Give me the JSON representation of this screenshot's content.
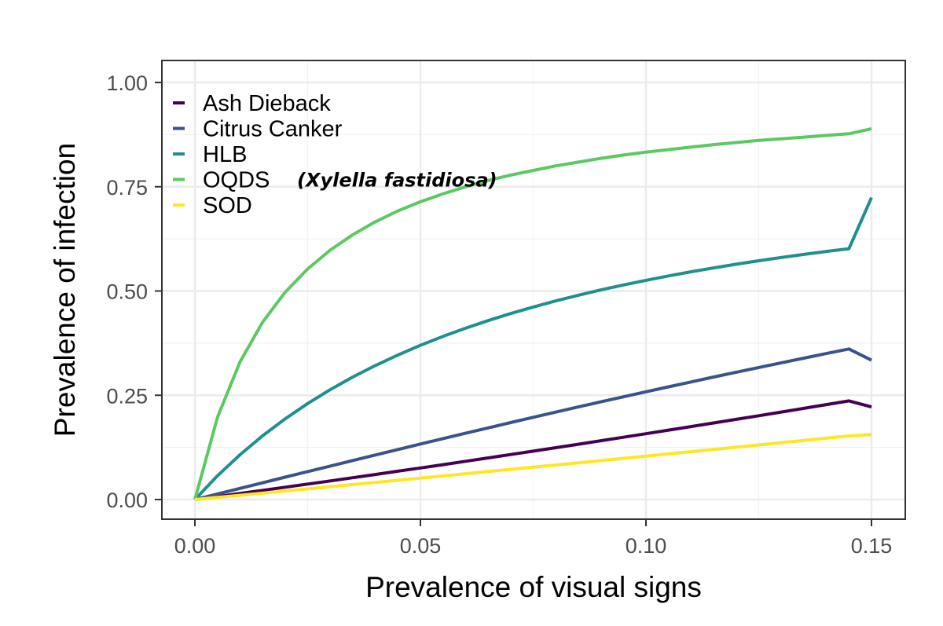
{
  "chart_data": {
    "type": "line",
    "xlabel": "Prevalence of visual signs",
    "ylabel": "Prevalence of infection",
    "xlim": [
      0,
      0.15
    ],
    "ylim": [
      0,
      1
    ],
    "x_ticks": [
      "0.00",
      "0.05",
      "0.10",
      "0.15"
    ],
    "y_ticks": [
      "0.00",
      "0.25",
      "0.50",
      "0.75",
      "1.00"
    ],
    "grid": true,
    "legend_position": "top-left",
    "x": [
      0,
      0.005,
      0.01,
      0.015,
      0.02,
      0.025,
      0.03,
      0.035,
      0.04,
      0.045,
      0.05,
      0.055,
      0.06,
      0.065,
      0.07,
      0.075,
      0.08,
      0.085,
      0.09,
      0.095,
      0.1,
      0.105,
      0.11,
      0.115,
      0.12,
      0.125,
      0.13,
      0.135,
      0.14,
      0.145,
      0.15
    ],
    "series": [
      {
        "name": "Ash Dieback",
        "color": "#440154",
        "values": [
          0,
          0.0072,
          0.0146,
          0.022,
          0.0295,
          0.0371,
          0.0447,
          0.0524,
          0.0601,
          0.0679,
          0.0758,
          0.0837,
          0.0917,
          0.0998,
          0.1079,
          0.1161,
          0.1243,
          0.1326,
          0.141,
          0.1494,
          0.1578,
          0.1664,
          0.1749,
          0.1836,
          0.1923,
          0.201,
          0.2098,
          0.2187,
          0.2276,
          0.2366,
          0.222
        ]
      },
      {
        "name": "Citrus Canker",
        "color": "#3b528b",
        "values": [
          0,
          0.0134,
          0.0268,
          0.0402,
          0.0536,
          0.067,
          0.0803,
          0.0936,
          0.1068,
          0.12,
          0.1331,
          0.1461,
          0.159,
          0.1718,
          0.1845,
          0.1971,
          0.2096,
          0.222,
          0.2342,
          0.2464,
          0.2584,
          0.2703,
          0.282,
          0.2937,
          0.3052,
          0.3166,
          0.3279,
          0.339,
          0.3501,
          0.361,
          0.334
        ]
      },
      {
        "name": "HLB",
        "color": "#21908c",
        "values": [
          0,
          0.0568,
          0.1074,
          0.1527,
          0.1934,
          0.2301,
          0.2634,
          0.2937,
          0.3213,
          0.3466,
          0.3698,
          0.3911,
          0.4108,
          0.429,
          0.4459,
          0.4616,
          0.4762,
          0.4898,
          0.5026,
          0.5145,
          0.5257,
          0.5362,
          0.5461,
          0.5554,
          0.5642,
          0.5725,
          0.5804,
          0.5878,
          0.5949,
          0.6016,
          0.724
        ]
      },
      {
        "name": "OQDS",
        "name_note": "(Xylella fastidiosa)",
        "color": "#5dc863",
        "values": [
          0,
          0.197,
          0.33,
          0.425,
          0.497,
          0.553,
          0.598,
          0.635,
          0.666,
          0.692,
          0.714,
          0.733,
          0.75,
          0.765,
          0.778,
          0.789,
          0.8,
          0.809,
          0.818,
          0.826,
          0.833,
          0.839,
          0.845,
          0.851,
          0.856,
          0.861,
          0.865,
          0.869,
          0.873,
          0.877,
          0.889
        ]
      },
      {
        "name": "SOD",
        "color": "#fde725",
        "values": [
          0,
          0.0051,
          0.0102,
          0.0153,
          0.0205,
          0.0256,
          0.0308,
          0.0359,
          0.0411,
          0.0463,
          0.0515,
          0.0567,
          0.0619,
          0.0672,
          0.0724,
          0.0777,
          0.0829,
          0.0882,
          0.0935,
          0.0988,
          0.1041,
          0.1094,
          0.1148,
          0.1201,
          0.1255,
          0.1309,
          0.1363,
          0.1417,
          0.1471,
          0.1525,
          0.156
        ]
      }
    ]
  }
}
